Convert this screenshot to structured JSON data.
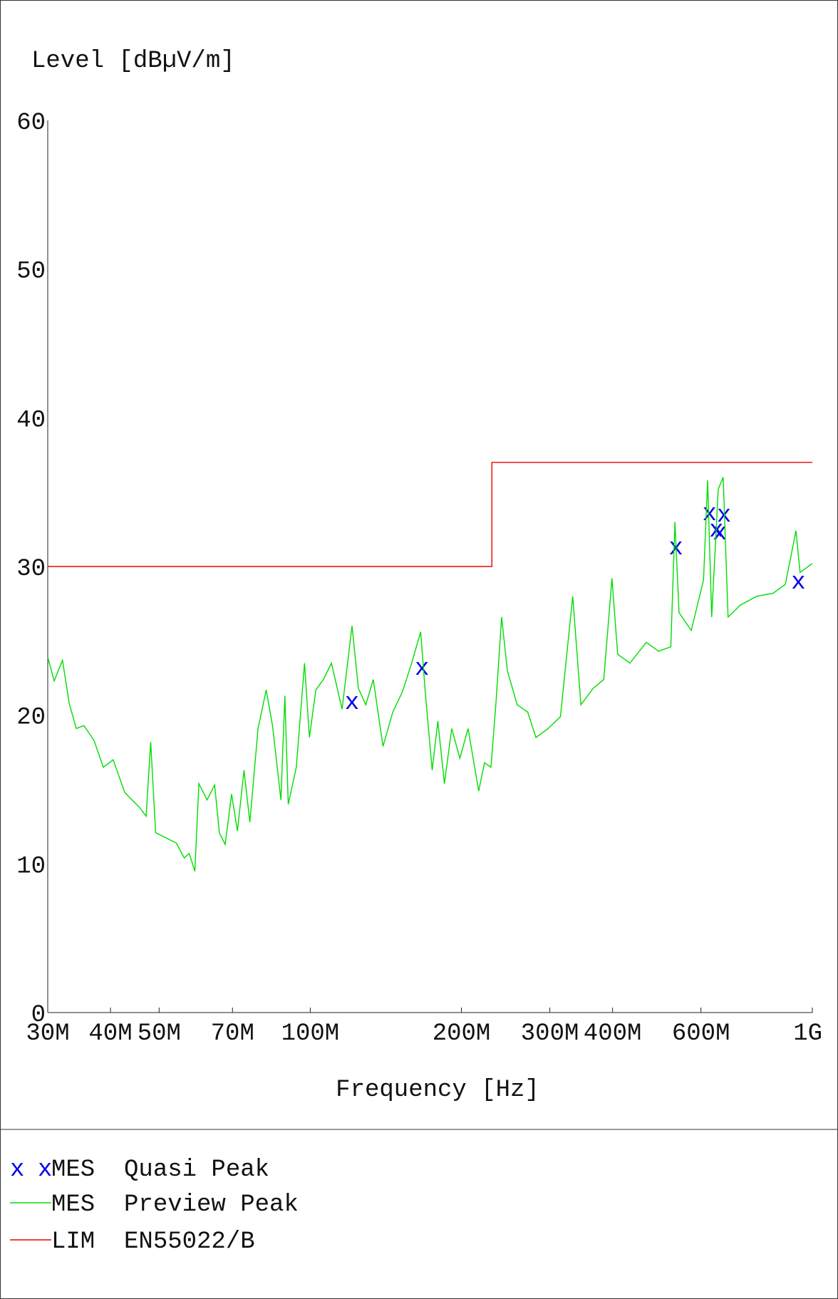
{
  "chart_data": {
    "type": "line",
    "title": "Level [dBµV/m]",
    "x_label": "Frequency [Hz]",
    "xscale": "log",
    "xlim": [
      30000000,
      1000000000
    ],
    "ylim": [
      0,
      60
    ],
    "xticks": [
      {
        "value": 30000000,
        "label": "30M"
      },
      {
        "value": 40000000,
        "label": "40M"
      },
      {
        "value": 50000000,
        "label": "50M"
      },
      {
        "value": 70000000,
        "label": "70M"
      },
      {
        "value": 100000000,
        "label": "100M"
      },
      {
        "value": 200000000,
        "label": "200M"
      },
      {
        "value": 300000000,
        "label": "300M"
      },
      {
        "value": 400000000,
        "label": "400M"
      },
      {
        "value": 600000000,
        "label": "600M"
      },
      {
        "value": 1000000000,
        "label": "1G"
      }
    ],
    "yticks": [
      0,
      10,
      20,
      30,
      40,
      50,
      60
    ],
    "grid": false,
    "series": [
      {
        "name": "MES  Quasi Peak",
        "type": "scatter",
        "marker": "x",
        "color": "#0000ee",
        "x": [
          121100000.0,
          166900000.0,
          535000000.0,
          624000000.0,
          644000000.0,
          654000000.0,
          667000000.0,
          938000000.0
        ],
        "values": [
          20.9,
          23.2,
          31.3,
          33.6,
          32.5,
          32.3,
          33.5,
          29.0
        ]
      },
      {
        "name": "MES  Preview Peak",
        "type": "line",
        "color": "#00dd00",
        "x": [
          30000000.0,
          30900000.0,
          32100000.0,
          33100000.0,
          34200000.0,
          35400000.0,
          37100000.0,
          38700000.0,
          40500000.0,
          42700000.0,
          45700000.0,
          47100000.0,
          48100000.0,
          49200000.0,
          54100000.0,
          56100000.0,
          57400000.0,
          58900000.0,
          60000000.0,
          62300000.0,
          64500000.0,
          65900000.0,
          67700000.0,
          69700000.0,
          71600000.0,
          73800000.0,
          75800000.0,
          78700000.0,
          81700000.0,
          84100000.0,
          87400000.0,
          89000000.0,
          90400000.0,
          93800000.0,
          97400000.0,
          99600000.0,
          102600000.0,
          106200000.0,
          110200000.0,
          115700000.0,
          121100000.0,
          124700000.0,
          129000000.0,
          133500000.0,
          139600000.0,
          146000000.0,
          152700000.0,
          159200000.0,
          165900000.0,
          169700000.0,
          174900000.0,
          179500000.0,
          185000000.0,
          191300000.0,
          198600000.0,
          206200000.0,
          216500000.0,
          222300000.0,
          229000000.0,
          234200000.0,
          240500000.0,
          246900000.0,
          258300000.0,
          271100000.0,
          281500000.0,
          297700000.0,
          315000000.0,
          333200000.0,
          346000000.0,
          365900000.0,
          384200000.0,
          398900000.0,
          409500000.0,
          433200000.0,
          467000000.0,
          494000000.0,
          522500000.0,
          532500000.0,
          542600000.0,
          573900000.0,
          607100000.0,
          618600000.0,
          630300000.0,
          649500000.0,
          664400000.0,
          679400000.0,
          718800000.0,
          774900000.0,
          835200000.0,
          883500000.0,
          927600000.0,
          945300000.0,
          1000000000.0
        ],
        "values": [
          23.9,
          22.3,
          23.7,
          20.8,
          19.1,
          19.3,
          18.3,
          16.5,
          17.0,
          14.8,
          13.8,
          13.2,
          18.2,
          12.1,
          11.4,
          10.4,
          10.7,
          9.5,
          15.4,
          14.3,
          15.3,
          12.1,
          11.3,
          14.7,
          12.2,
          16.3,
          12.8,
          19.1,
          21.7,
          19.3,
          14.3,
          21.3,
          14.0,
          16.5,
          23.5,
          18.5,
          21.7,
          22.4,
          23.5,
          20.4,
          26.0,
          21.8,
          20.7,
          22.4,
          17.9,
          20.2,
          21.6,
          23.5,
          25.6,
          21.3,
          16.3,
          19.6,
          15.4,
          19.1,
          17.1,
          19.1,
          14.9,
          16.8,
          16.5,
          20.7,
          26.6,
          23.0,
          20.7,
          20.2,
          18.5,
          19.1,
          19.9,
          28.0,
          20.7,
          21.8,
          22.4,
          29.2,
          24.1,
          23.5,
          24.9,
          24.3,
          24.6,
          33.0,
          26.9,
          25.7,
          29.1,
          35.8,
          26.6,
          35.2,
          36.0,
          26.6,
          27.4,
          28.0,
          28.2,
          28.8,
          32.4,
          29.6,
          30.2
        ]
      },
      {
        "name": "LIM  EN55022/B",
        "type": "line",
        "color": "#ee0000",
        "x": [
          30000000,
          230000000,
          230000000,
          1000000000
        ],
        "values": [
          30,
          30,
          37,
          37
        ]
      }
    ]
  }
}
